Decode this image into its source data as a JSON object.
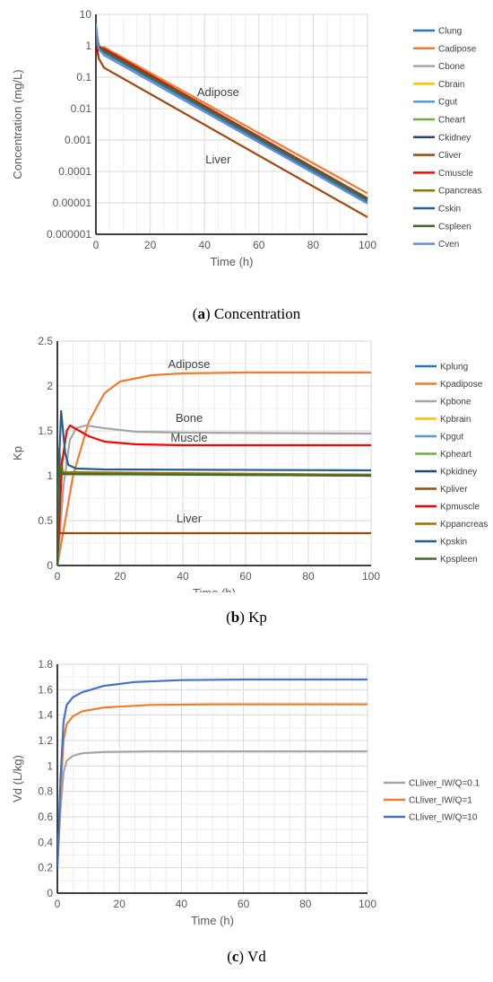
{
  "chart_data": [
    {
      "type": "line",
      "caption_letter": "a",
      "caption_text": "Concentration",
      "xlabel": "Time (h)",
      "ylabel": "Concentration (mg/L)",
      "xlim": [
        0,
        100
      ],
      "ylim": [
        1e-06,
        10
      ],
      "yscale": "log",
      "xticks": [
        "0",
        "20",
        "40",
        "60",
        "80",
        "100"
      ],
      "yticks": [
        "0.000001",
        "0.00001",
        "0.0001",
        "0.001",
        "0.01",
        "0.1",
        "1",
        "10"
      ],
      "grid": true,
      "legend_position": "right",
      "annotations": [
        {
          "text": "Adipose",
          "x": 45,
          "y": 0.025
        },
        {
          "text": "Liver",
          "x": 45,
          "y": 0.00018
        }
      ],
      "series": [
        {
          "name": "Clung",
          "color": "#2e75b6",
          "points": [
            [
              0,
              4
            ],
            [
              1,
              1
            ],
            [
              3,
              0.6
            ],
            [
              100,
              1.1e-05
            ]
          ]
        },
        {
          "name": "Cadipose",
          "color": "#ed7d31",
          "points": [
            [
              0,
              0.5
            ],
            [
              1,
              0.8
            ],
            [
              3,
              0.9
            ],
            [
              100,
              2e-05
            ]
          ]
        },
        {
          "name": "Cbone",
          "color": "#a5a5a5",
          "points": [
            [
              0,
              3
            ],
            [
              1,
              1
            ],
            [
              3,
              0.7
            ],
            [
              100,
              1.3e-05
            ]
          ]
        },
        {
          "name": "Cbrain",
          "color": "#ffc000",
          "points": [
            [
              0,
              3
            ],
            [
              1,
              1
            ],
            [
              3,
              0.7
            ],
            [
              100,
              1.3e-05
            ]
          ]
        },
        {
          "name": "Cgut",
          "color": "#5b9bd5",
          "points": [
            [
              0,
              3
            ],
            [
              1,
              1
            ],
            [
              3,
              0.7
            ],
            [
              100,
              1.3e-05
            ]
          ]
        },
        {
          "name": "Cheart",
          "color": "#70ad47",
          "points": [
            [
              0,
              3
            ],
            [
              1,
              1
            ],
            [
              3,
              0.7
            ],
            [
              100,
              1.3e-05
            ]
          ]
        },
        {
          "name": "Ckidney",
          "color": "#264478",
          "points": [
            [
              0,
              3
            ],
            [
              1,
              1
            ],
            [
              3,
              0.7
            ],
            [
              100,
              1.3e-05
            ]
          ]
        },
        {
          "name": "Cliver",
          "color": "#9e480e",
          "points": [
            [
              0,
              2
            ],
            [
              1,
              0.4
            ],
            [
              3,
              0.2
            ],
            [
              100,
              3.5e-06
            ]
          ]
        },
        {
          "name": "Cmuscle",
          "color": "#ff0000",
          "points": [
            [
              0,
              0.5
            ],
            [
              1,
              0.9
            ],
            [
              3,
              0.8
            ],
            [
              100,
              1.4e-05
            ]
          ]
        },
        {
          "name": "Cpancreas",
          "color": "#997300",
          "points": [
            [
              0,
              3
            ],
            [
              1,
              1
            ],
            [
              3,
              0.7
            ],
            [
              100,
              1.3e-05
            ]
          ]
        },
        {
          "name": "Cskin",
          "color": "#255e91",
          "points": [
            [
              0,
              3
            ],
            [
              1,
              1
            ],
            [
              3,
              0.7
            ],
            [
              100,
              1.3e-05
            ]
          ]
        },
        {
          "name": "Cspleen",
          "color": "#43682b",
          "points": [
            [
              0,
              3
            ],
            [
              1,
              1
            ],
            [
              3,
              0.7
            ],
            [
              100,
              1.3e-05
            ]
          ]
        },
        {
          "name": "Cven",
          "color": "#698ed0",
          "points": [
            [
              0,
              5
            ],
            [
              1,
              0.8
            ],
            [
              3,
              0.5
            ],
            [
              100,
              9.5e-06
            ]
          ]
        }
      ]
    },
    {
      "type": "line",
      "caption_letter": "b",
      "caption_text": "Kp",
      "xlabel": "Time (h)",
      "ylabel": "Kp",
      "xlim": [
        0,
        100
      ],
      "ylim": [
        0,
        2.5
      ],
      "yscale": "linear",
      "xticks": [
        "0",
        "20",
        "40",
        "60",
        "80",
        "100"
      ],
      "yticks": [
        "0",
        "0.5",
        "1",
        "1.5",
        "2",
        "2.5"
      ],
      "grid": true,
      "legend_position": "right",
      "annotations": [
        {
          "text": "Adipose",
          "x": 42,
          "y": 2.2
        },
        {
          "text": "Bone",
          "x": 42,
          "y": 1.6
        },
        {
          "text": "Muscle",
          "x": 42,
          "y": 1.38
        },
        {
          "text": "Liver",
          "x": 42,
          "y": 0.48
        }
      ],
      "series": [
        {
          "name": "Kplung",
          "color": "#2e75b6",
          "points": [
            [
              0,
              0
            ],
            [
              0.7,
              1.1
            ],
            [
              1.5,
              1.03
            ],
            [
              100,
              1.01
            ]
          ]
        },
        {
          "name": "Kpadipose",
          "color": "#ed7d31",
          "points": [
            [
              0,
              0
            ],
            [
              2,
              0.4
            ],
            [
              5,
              1.0
            ],
            [
              10,
              1.6
            ],
            [
              15,
              1.92
            ],
            [
              20,
              2.05
            ],
            [
              30,
              2.12
            ],
            [
              40,
              2.14
            ],
            [
              60,
              2.15
            ],
            [
              100,
              2.15
            ]
          ]
        },
        {
          "name": "Kpbone",
          "color": "#a5a5a5",
          "points": [
            [
              0,
              0
            ],
            [
              2,
              0.9
            ],
            [
              4,
              1.4
            ],
            [
              6,
              1.53
            ],
            [
              9,
              1.56
            ],
            [
              15,
              1.53
            ],
            [
              25,
              1.49
            ],
            [
              40,
              1.48
            ],
            [
              100,
              1.47
            ]
          ]
        },
        {
          "name": "Kpbrain",
          "color": "#ffc000",
          "points": [
            [
              0,
              0
            ],
            [
              0.5,
              0.9
            ],
            [
              1,
              1.2
            ],
            [
              1.8,
              1.02
            ],
            [
              100,
              1.01
            ]
          ]
        },
        {
          "name": "Kpgut",
          "color": "#5b9bd5",
          "points": [
            [
              0,
              0
            ],
            [
              0.7,
              1.1
            ],
            [
              1.5,
              1.03
            ],
            [
              100,
              1.01
            ]
          ]
        },
        {
          "name": "Kpheart",
          "color": "#70ad47",
          "points": [
            [
              0,
              0
            ],
            [
              0.5,
              1.3
            ],
            [
              1.1,
              1.15
            ],
            [
              2,
              1.02
            ],
            [
              100,
              1.0
            ]
          ]
        },
        {
          "name": "Kpkidney",
          "color": "#264478",
          "points": [
            [
              0,
              0
            ],
            [
              0.7,
              1.1
            ],
            [
              1.5,
              1.03
            ],
            [
              100,
              1.01
            ]
          ]
        },
        {
          "name": "Kpliver",
          "color": "#9e480e",
          "points": [
            [
              0,
              0
            ],
            [
              0.3,
              0.36
            ],
            [
              1,
              0.36
            ],
            [
              100,
              0.36
            ]
          ]
        },
        {
          "name": "Kpmuscle",
          "color": "#ff0000",
          "points": [
            [
              0,
              0
            ],
            [
              1.5,
              1.15
            ],
            [
              3,
              1.5
            ],
            [
              4,
              1.56
            ],
            [
              6,
              1.52
            ],
            [
              10,
              1.44
            ],
            [
              15,
              1.38
            ],
            [
              25,
              1.35
            ],
            [
              40,
              1.34
            ],
            [
              100,
              1.34
            ]
          ]
        },
        {
          "name": "Kppancreas",
          "color": "#997300",
          "points": [
            [
              0,
              0
            ],
            [
              0.6,
              1.15
            ],
            [
              1.5,
              1.04
            ],
            [
              100,
              1.01
            ]
          ]
        },
        {
          "name": "Kpskin",
          "color": "#255e91",
          "points": [
            [
              0,
              0
            ],
            [
              0.6,
              1.2
            ],
            [
              1.2,
              1.72
            ],
            [
              1.8,
              1.5
            ],
            [
              2.5,
              1.25
            ],
            [
              3.5,
              1.12
            ],
            [
              6,
              1.08
            ],
            [
              15,
              1.07
            ],
            [
              100,
              1.06
            ]
          ]
        },
        {
          "name": "Kpspleen",
          "color": "#43682b",
          "points": [
            [
              0,
              0
            ],
            [
              0.7,
              1.1
            ],
            [
              1.5,
              1.02
            ],
            [
              100,
              1.0
            ]
          ]
        }
      ]
    },
    {
      "type": "line",
      "caption_letter": "c",
      "caption_text": "Vd",
      "xlabel": "Time (h)",
      "ylabel": "Vd (L/kg)",
      "xlim": [
        0,
        100
      ],
      "ylim": [
        0,
        1.8
      ],
      "yscale": "linear",
      "xticks": [
        "0",
        "20",
        "40",
        "60",
        "80",
        "100"
      ],
      "yticks": [
        "0",
        "0.2",
        "0.4",
        "0.6",
        "0.8",
        "1",
        "1.2",
        "1.4",
        "1.6",
        "1.8"
      ],
      "grid": true,
      "legend_position": "right",
      "annotations": [],
      "series": [
        {
          "name": "CLliver_IW/Q=0.1",
          "color": "#a5a5a5",
          "points": [
            [
              0,
              0.2
            ],
            [
              1,
              0.65
            ],
            [
              2,
              0.95
            ],
            [
              3,
              1.04
            ],
            [
              5,
              1.08
            ],
            [
              8,
              1.1
            ],
            [
              15,
              1.11
            ],
            [
              30,
              1.115
            ],
            [
              100,
              1.115
            ]
          ]
        },
        {
          "name": "CLliver_IW/Q=1",
          "color": "#ed7d31",
          "points": [
            [
              0,
              0.2
            ],
            [
              1,
              0.8
            ],
            [
              2,
              1.2
            ],
            [
              3,
              1.33
            ],
            [
              5,
              1.39
            ],
            [
              8,
              1.43
            ],
            [
              15,
              1.46
            ],
            [
              30,
              1.48
            ],
            [
              50,
              1.485
            ],
            [
              100,
              1.485
            ]
          ]
        },
        {
          "name": "CLliver_IW/Q=10",
          "color": "#4472c4",
          "points": [
            [
              0,
              0.2
            ],
            [
              1,
              0.9
            ],
            [
              2,
              1.35
            ],
            [
              3,
              1.48
            ],
            [
              5,
              1.54
            ],
            [
              8,
              1.58
            ],
            [
              15,
              1.63
            ],
            [
              25,
              1.66
            ],
            [
              40,
              1.675
            ],
            [
              60,
              1.68
            ],
            [
              100,
              1.68
            ]
          ]
        }
      ]
    }
  ]
}
